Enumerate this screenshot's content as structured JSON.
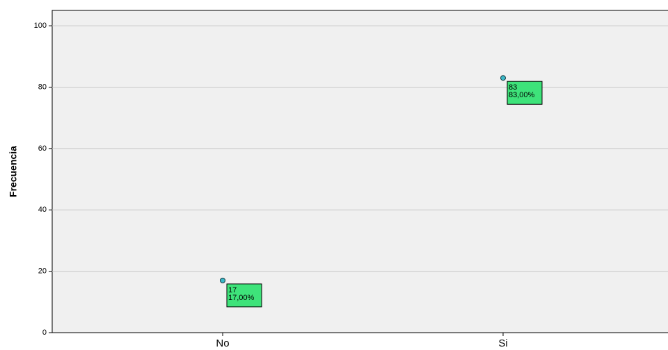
{
  "chart_data": {
    "type": "scatter",
    "y_label": "Frecuencia",
    "categories": [
      "No",
      "Si"
    ],
    "values": [
      17,
      83
    ],
    "percent_labels": [
      "17,00%",
      "83,00%"
    ],
    "color": "#3ab8c8",
    "label_color": "#3ee37a",
    "ylim": [
      0,
      105
    ],
    "yticks": [
      0,
      20,
      40,
      60,
      80,
      100
    ],
    "grid": true
  }
}
